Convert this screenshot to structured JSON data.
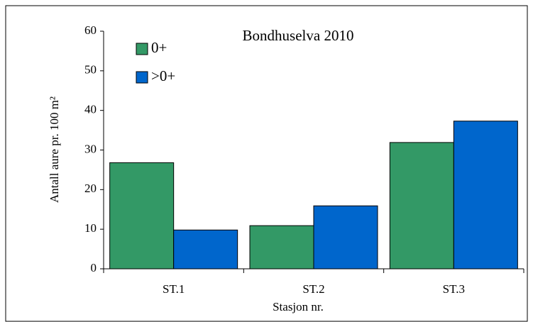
{
  "chart_data": {
    "type": "grouped-bar",
    "title": "Bondhuselva 2010",
    "xlabel": "Stasjon nr.",
    "ylabel": "Antall aure pr. 100 m²",
    "categories": [
      "ST.1",
      "ST.2",
      "ST.3"
    ],
    "series": [
      {
        "name": "0+",
        "color": "#339966",
        "values": [
          26.8,
          10.9,
          31.9
        ]
      },
      {
        "name": ">0+",
        "color": "#0066cc",
        "values": [
          9.8,
          15.9,
          37.3
        ]
      }
    ],
    "ylim": [
      0,
      60
    ],
    "yticks": [
      0,
      10,
      20,
      30,
      40,
      50,
      60
    ],
    "legend": "upper left"
  }
}
